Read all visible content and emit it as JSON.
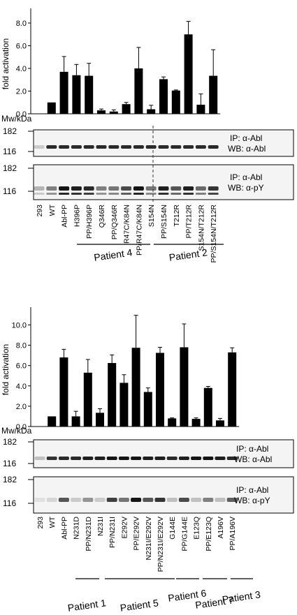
{
  "chart_data": [
    {
      "type": "bar",
      "ylabel": "fold activation",
      "ylim": [
        0,
        8.8
      ],
      "yticks": [
        "0.0",
        "2.0",
        "4.0",
        "6.0",
        "8.0"
      ],
      "ytick_values": [
        0,
        2,
        4,
        6,
        8
      ],
      "categories": [
        "293",
        "WT",
        "Abl-PP",
        "H396P",
        "PP/H396P",
        "Q346R",
        "PP/Q346R",
        "R47C/K84N",
        "PP/R47C/K84N",
        "S154N",
        "PP/S154N",
        "T212R",
        "PP/T212R",
        "S154N/T212R",
        "PP/S154N/T212R"
      ],
      "values": [
        null,
        1.0,
        3.7,
        3.4,
        3.35,
        0.3,
        0.2,
        0.85,
        4.0,
        0.4,
        3.05,
        2.05,
        7.0,
        0.8,
        3.35
      ],
      "errors": [
        null,
        0,
        1.35,
        0.95,
        1.1,
        0.12,
        0.15,
        0.15,
        1.85,
        0.35,
        0.2,
        0.05,
        1.15,
        0.95,
        2.3
      ],
      "mw_label": "Mw/kDa",
      "blots": [
        {
          "markers": [
            "182",
            "116"
          ],
          "ip": "IP: α-Abl",
          "wb": "WB: α-Abl"
        },
        {
          "markers": [
            "182",
            "116"
          ],
          "ip": "IP: α-Abl",
          "wb": "WB: α-pY"
        }
      ],
      "patients": [
        {
          "label": "Patient 4"
        },
        {
          "label": "Patient 2"
        }
      ]
    },
    {
      "type": "bar",
      "ylabel": "fold activation",
      "ylim": [
        0,
        11.2
      ],
      "yticks": [
        "0.0",
        "2.0",
        "4.0",
        "6.0",
        "8.0",
        "10.0"
      ],
      "ytick_values": [
        0,
        2,
        4,
        6,
        8,
        10
      ],
      "categories": [
        "293",
        "WT",
        "Abl-PP",
        "N231D",
        "PP/N231D",
        "N231I",
        "PP/N231I",
        "E292V",
        "PP/E292V",
        "N231I/E292V",
        "PP/N231I/E292V",
        "G144E",
        "PP/G144E",
        "E123Q",
        "PP/E123Q",
        "A196V",
        "PP/A196V"
      ],
      "values": [
        null,
        1.0,
        6.8,
        1.0,
        5.3,
        1.35,
        6.25,
        4.3,
        7.75,
        3.4,
        7.25,
        0.8,
        7.8,
        0.75,
        3.8,
        0.6,
        7.3
      ],
      "errors": [
        null,
        0,
        0.8,
        0.5,
        1.3,
        0.4,
        0.8,
        0.8,
        3.2,
        0.4,
        0.55,
        0.05,
        2.3,
        0.1,
        0.15,
        0.2,
        0.45
      ],
      "mw_label": "Mw/kDa",
      "blots": [
        {
          "markers": [
            "182",
            "116"
          ],
          "ip": "IP: α-Abl",
          "wb": "WB: α-Abl"
        },
        {
          "markers": [
            "182",
            "116"
          ],
          "ip": "IP: α-Abl",
          "wb": "WB: α-pY"
        }
      ],
      "patients": [
        {
          "label": "Patient 1"
        },
        {
          "label": "Patient 5"
        },
        {
          "label": "Patient 6"
        },
        {
          "label": "Patient 7"
        },
        {
          "label": "Patient 3"
        }
      ]
    }
  ]
}
